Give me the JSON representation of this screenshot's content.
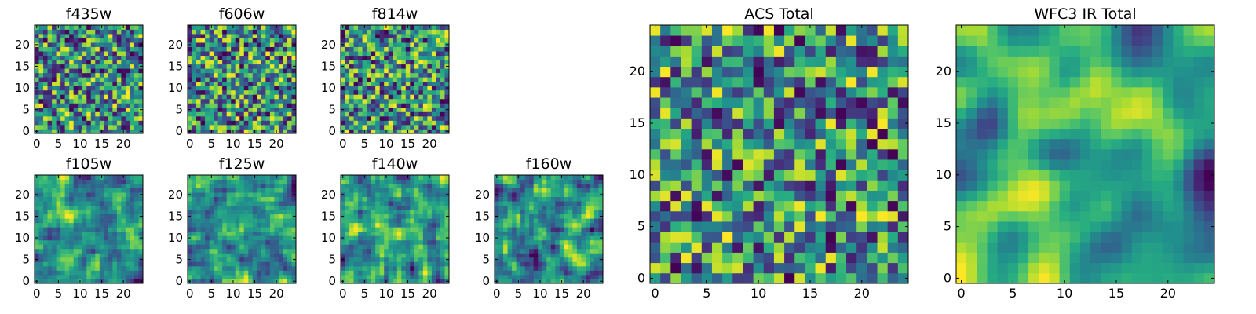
{
  "chart_data": [
    {
      "type": "heatmap",
      "title": "f435w",
      "grid_size": 25,
      "xticks": [
        "0",
        "5",
        "10",
        "15",
        "20"
      ],
      "yticks": [
        "0",
        "5",
        "10",
        "15",
        "20"
      ],
      "xlim": [
        -0.5,
        24.5
      ],
      "ylim": [
        -0.5,
        24.5
      ],
      "seed": 11,
      "smooth": 0,
      "colormap": "viridis"
    },
    {
      "type": "heatmap",
      "title": "f606w",
      "grid_size": 25,
      "xticks": [
        "0",
        "5",
        "10",
        "15",
        "20"
      ],
      "yticks": [
        "0",
        "5",
        "10",
        "15",
        "20"
      ],
      "xlim": [
        -0.5,
        24.5
      ],
      "ylim": [
        -0.5,
        24.5
      ],
      "seed": 23,
      "smooth": 0,
      "colormap": "viridis"
    },
    {
      "type": "heatmap",
      "title": "f814w",
      "grid_size": 25,
      "xticks": [
        "0",
        "5",
        "10",
        "15",
        "20"
      ],
      "yticks": [
        "0",
        "5",
        "10",
        "15",
        "20"
      ],
      "xlim": [
        -0.5,
        24.5
      ],
      "ylim": [
        -0.5,
        24.5
      ],
      "seed": 37,
      "smooth": 0,
      "colormap": "viridis"
    },
    {
      "type": "heatmap",
      "title": "f105w",
      "grid_size": 25,
      "xticks": [
        "0",
        "5",
        "10",
        "15",
        "20"
      ],
      "yticks": [
        "0",
        "5",
        "10",
        "15",
        "20"
      ],
      "xlim": [
        -0.5,
        24.5
      ],
      "ylim": [
        -0.5,
        24.5
      ],
      "seed": 41,
      "smooth": 1,
      "colormap": "viridis"
    },
    {
      "type": "heatmap",
      "title": "f125w",
      "grid_size": 25,
      "xticks": [
        "0",
        "5",
        "10",
        "15",
        "20"
      ],
      "yticks": [
        "0",
        "5",
        "10",
        "15",
        "20"
      ],
      "xlim": [
        -0.5,
        24.5
      ],
      "ylim": [
        -0.5,
        24.5
      ],
      "seed": 53,
      "smooth": 1,
      "colormap": "viridis"
    },
    {
      "type": "heatmap",
      "title": "f140w",
      "grid_size": 25,
      "xticks": [
        "0",
        "5",
        "10",
        "15",
        "20"
      ],
      "yticks": [
        "0",
        "5",
        "10",
        "15",
        "20"
      ],
      "xlim": [
        -0.5,
        24.5
      ],
      "ylim": [
        -0.5,
        24.5
      ],
      "seed": 67,
      "smooth": 1,
      "colormap": "viridis"
    },
    {
      "type": "heatmap",
      "title": "f160w",
      "grid_size": 25,
      "xticks": [
        "0",
        "5",
        "10",
        "15",
        "20"
      ],
      "yticks": [
        "0",
        "5",
        "10",
        "15",
        "20"
      ],
      "xlim": [
        -0.5,
        24.5
      ],
      "ylim": [
        -0.5,
        24.5
      ],
      "seed": 79,
      "smooth": 1,
      "colormap": "viridis"
    },
    {
      "type": "heatmap",
      "title": "ACS Total",
      "grid_size": 25,
      "xticks": [
        "0",
        "5",
        "10",
        "15",
        "20"
      ],
      "yticks": [
        "0",
        "5",
        "10",
        "15",
        "20"
      ],
      "xlim": [
        -0.5,
        24.5
      ],
      "ylim": [
        -0.5,
        24.5
      ],
      "seed": 97,
      "smooth": 0,
      "colormap": "viridis"
    },
    {
      "type": "heatmap",
      "title": "WFC3 IR Total",
      "grid_size": 25,
      "xticks": [
        "0",
        "5",
        "10",
        "15",
        "20"
      ],
      "yticks": [
        "0",
        "5",
        "10",
        "15",
        "20"
      ],
      "xlim": [
        -0.5,
        24.5
      ],
      "ylim": [
        -0.5,
        24.5
      ],
      "seed": 113,
      "smooth": 3,
      "colormap": "viridis"
    }
  ]
}
